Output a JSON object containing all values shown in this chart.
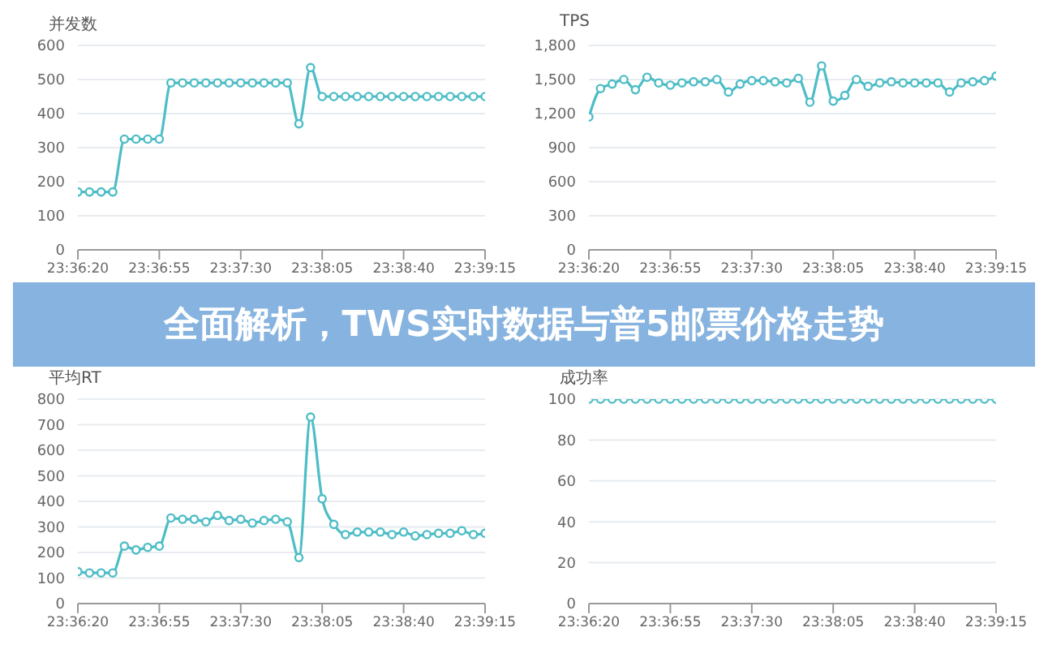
{
  "chart_data": [
    {
      "type": "line",
      "ylabel": "并发数",
      "categories": [
        "23:36:20",
        null,
        null,
        null,
        null,
        null,
        null,
        "23:36:55",
        null,
        null,
        null,
        null,
        null,
        null,
        "23:37:30",
        null,
        null,
        null,
        null,
        null,
        null,
        "23:38:05",
        null,
        null,
        null,
        null,
        null,
        null,
        "23:38:40",
        null,
        null,
        null,
        null,
        null,
        null,
        "23:39:15"
      ],
      "series": [
        {
          "color": "#4dbdc6",
          "values": [
            170,
            170,
            170,
            170,
            325,
            325,
            325,
            325,
            490,
            490,
            490,
            490,
            490,
            490,
            490,
            490,
            490,
            490,
            490,
            370,
            535,
            450,
            450,
            450,
            450,
            450,
            450,
            450,
            450,
            450,
            450,
            450,
            450,
            450,
            450,
            450
          ]
        }
      ],
      "ylim": [
        0,
        600
      ],
      "yticks": [
        0,
        100,
        200,
        300,
        400,
        500,
        600
      ],
      "grid": "y",
      "marker": "circle"
    },
    {
      "type": "line",
      "ylabel": "TPS",
      "categories": [
        "23:36:20",
        null,
        null,
        null,
        null,
        null,
        null,
        "23:36:55",
        null,
        null,
        null,
        null,
        null,
        null,
        "23:37:30",
        null,
        null,
        null,
        null,
        null,
        null,
        "23:38:05",
        null,
        null,
        null,
        null,
        null,
        null,
        "23:38:40",
        null,
        null,
        null,
        null,
        null,
        null,
        "23:39:15"
      ],
      "series": [
        {
          "color": "#4dbdc6",
          "values": [
            1170,
            1420,
            1460,
            1500,
            1410,
            1520,
            1470,
            1450,
            1470,
            1480,
            1480,
            1500,
            1390,
            1460,
            1490,
            1490,
            1480,
            1470,
            1510,
            1300,
            1620,
            1310,
            1360,
            1500,
            1440,
            1470,
            1480,
            1470,
            1470,
            1470,
            1470,
            1390,
            1470,
            1480,
            1490,
            1530
          ]
        }
      ],
      "ylim": [
        0,
        1800
      ],
      "yticks": [
        0,
        300,
        600,
        900,
        {
          "value": 1200,
          "label": "1,200"
        },
        {
          "value": 1500,
          "label": "1,500"
        },
        {
          "value": 1800,
          "label": "1,800"
        }
      ],
      "grid": "y",
      "marker": "circle"
    },
    {
      "type": "other",
      "title": "全面解析，TWS实时数据与普5邮票价格走势"
    },
    {
      "type": "line",
      "ylabel": "平均RT",
      "categories": [
        "23:36:20",
        null,
        null,
        null,
        null,
        null,
        null,
        "23:36:55",
        null,
        null,
        null,
        null,
        null,
        null,
        "23:37:30",
        null,
        null,
        null,
        null,
        null,
        null,
        "23:38:05",
        null,
        null,
        null,
        null,
        null,
        null,
        "23:38:40",
        null,
        null,
        null,
        null,
        null,
        null,
        "23:39:15"
      ],
      "series": [
        {
          "color": "#4dbdc6",
          "values": [
            125,
            120,
            120,
            120,
            225,
            210,
            220,
            225,
            335,
            330,
            330,
            320,
            345,
            325,
            330,
            315,
            325,
            330,
            320,
            180,
            730,
            410,
            310,
            270,
            280,
            280,
            280,
            270,
            280,
            265,
            270,
            275,
            275,
            285,
            270,
            275
          ]
        }
      ],
      "ylim": [
        0,
        800
      ],
      "yticks": [
        0,
        100,
        200,
        300,
        400,
        500,
        600,
        700,
        800
      ],
      "grid": "y",
      "marker": "circle"
    },
    {
      "type": "line",
      "ylabel": "成功率",
      "categories": [
        "23:36:20",
        null,
        null,
        null,
        null,
        null,
        null,
        "23:36:55",
        null,
        null,
        null,
        null,
        null,
        null,
        "23:37:30",
        null,
        null,
        null,
        null,
        null,
        null,
        "23:38:05",
        null,
        null,
        null,
        null,
        null,
        null,
        "23:38:40",
        null,
        null,
        null,
        null,
        null,
        null,
        "23:39:15"
      ],
      "series": [
        {
          "color": "#4dbdc6",
          "values": [
            100,
            100,
            100,
            100,
            100,
            100,
            100,
            100,
            100,
            100,
            100,
            100,
            100,
            100,
            100,
            100,
            100,
            100,
            100,
            100,
            100,
            100,
            100,
            100,
            100,
            100,
            100,
            100,
            100,
            100,
            100,
            100,
            100,
            100,
            100,
            100
          ]
        }
      ],
      "ylim": [
        0,
        100
      ],
      "yticks": [
        0,
        20,
        40,
        60,
        80,
        100
      ],
      "grid": "y",
      "marker": "circle"
    }
  ]
}
